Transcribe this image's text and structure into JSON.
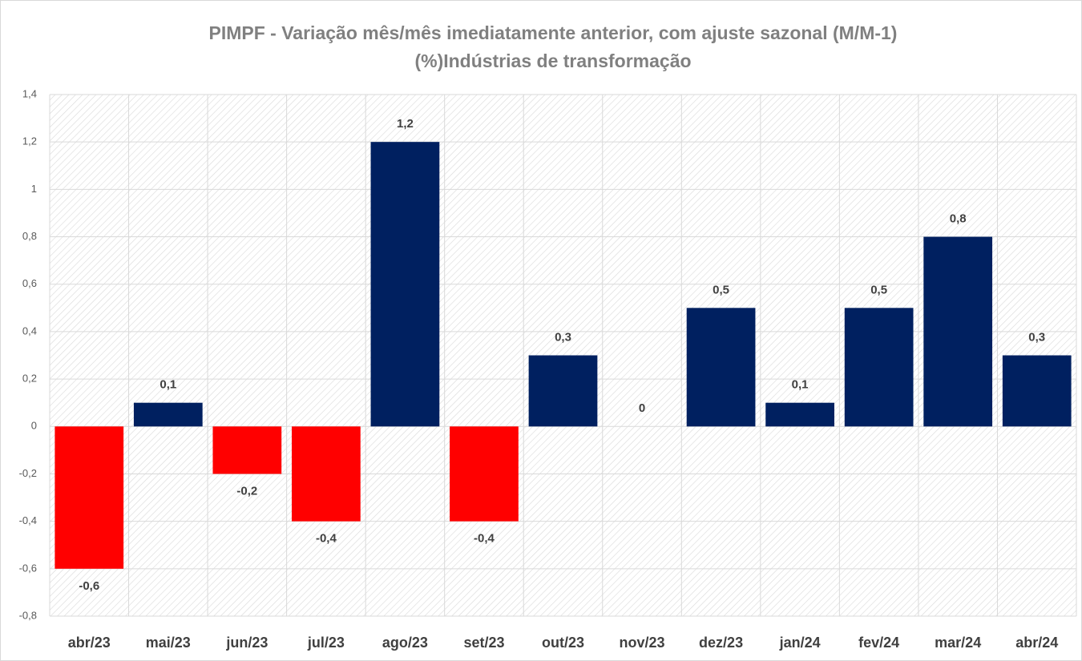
{
  "chart_data": {
    "type": "bar",
    "title": [
      "PIMPF - Variação mês/mês imediatamente anterior, com ajuste sazonal (M/M-1)",
      "(%)Indústrias de transformação"
    ],
    "categories": [
      "abr/23",
      "mai/23",
      "jun/23",
      "jul/23",
      "ago/23",
      "set/23",
      "out/23",
      "nov/23",
      "dez/23",
      "jan/24",
      "fev/24",
      "mar/24",
      "abr/24"
    ],
    "values": [
      -0.6,
      0.1,
      -0.2,
      -0.4,
      1.2,
      -0.4,
      0.3,
      0,
      0.5,
      0.1,
      0.5,
      0.8,
      0.3
    ],
    "value_labels": [
      "-0,6",
      "0,1",
      "-0,2",
      "-0,4",
      "1,2",
      "-0,4",
      "0,3",
      "0",
      "0,5",
      "0,1",
      "0,5",
      "0,8",
      "0,3"
    ],
    "color": "#002060",
    "negative_color": "#ff0000",
    "ylim": [
      -0.8,
      1.4
    ],
    "yticks": [
      {
        "value": -0.8,
        "label": "-0,8"
      },
      {
        "value": -0.6,
        "label": "-0,6"
      },
      {
        "value": -0.4,
        "label": "-0,4"
      },
      {
        "value": -0.2,
        "label": "-0,2"
      },
      0,
      {
        "value": 0.2,
        "label": "0,2"
      },
      {
        "value": 0.4,
        "label": "0,4"
      },
      {
        "value": 0.6,
        "label": "0,6"
      },
      {
        "value": 0.8,
        "label": "0,8"
      },
      1,
      {
        "value": 1.2,
        "label": "1,2"
      },
      {
        "value": 1.4,
        "label": "1,4"
      }
    ],
    "grid": true
  }
}
